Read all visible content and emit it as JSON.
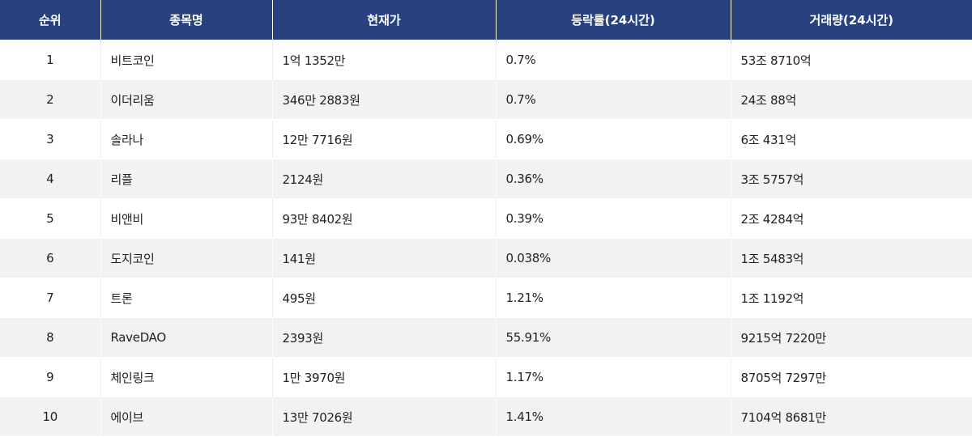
{
  "colors": {
    "header_bg": "#27427f",
    "header_text": "#ffffff",
    "row_alt_bg": "#f2f2f2",
    "row_bg": "#ffffff",
    "text": "#222222"
  },
  "table": {
    "headers": {
      "rank": "순위",
      "name": "종목명",
      "price": "현재가",
      "change": "등락률(24시간)",
      "volume": "거래량(24시간)"
    },
    "rows": [
      {
        "rank": "1",
        "name": "비트코인",
        "price": "1억 1352만",
        "change": "0.7%",
        "volume": "53조 8710억"
      },
      {
        "rank": "2",
        "name": "이더리움",
        "price": "346만 2883원",
        "change": "0.7%",
        "volume": "24조 88억"
      },
      {
        "rank": "3",
        "name": "솔라나",
        "price": "12만 7716원",
        "change": "0.69%",
        "volume": "6조 431억"
      },
      {
        "rank": "4",
        "name": "리플",
        "price": "2124원",
        "change": "0.36%",
        "volume": "3조 5757억"
      },
      {
        "rank": "5",
        "name": "비앤비",
        "price": "93만 8402원",
        "change": "0.39%",
        "volume": "2조 4284억"
      },
      {
        "rank": "6",
        "name": "도지코인",
        "price": "141원",
        "change": "0.038%",
        "volume": "1조 5483억"
      },
      {
        "rank": "7",
        "name": "트론",
        "price": "495원",
        "change": "1.21%",
        "volume": "1조 1192억"
      },
      {
        "rank": "8",
        "name": "RaveDAO",
        "price": "2393원",
        "change": "55.91%",
        "volume": "9215억 7220만"
      },
      {
        "rank": "9",
        "name": "체인링크",
        "price": "1만 3970원",
        "change": "1.17%",
        "volume": "8705억 7297만"
      },
      {
        "rank": "10",
        "name": "에이브",
        "price": "13만 7026원",
        "change": "1.41%",
        "volume": "7104억 8681만"
      }
    ]
  }
}
